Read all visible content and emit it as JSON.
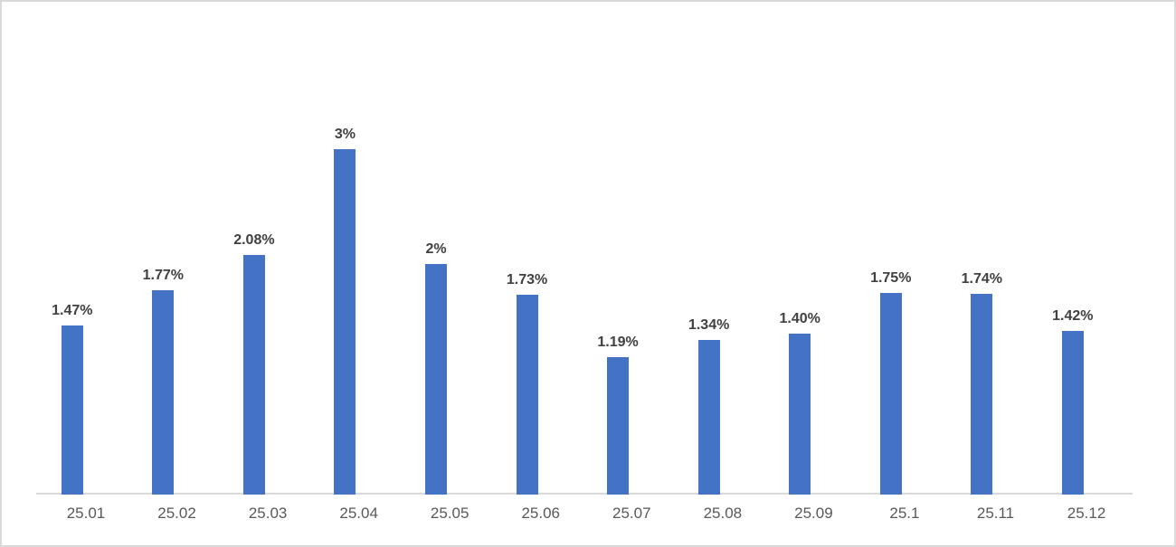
{
  "window": {
    "background": "#FFFFFF",
    "frame_border_color": "#D9D9D9"
  },
  "chart_data": {
    "type": "bar",
    "title": "",
    "xlabel": "",
    "ylabel": "",
    "categories": [
      "25.01",
      "25.02",
      "25.03",
      "25.04",
      "25.05",
      "25.06",
      "25.07",
      "25.08",
      "25.09",
      "25.1",
      "25.11",
      "25.12"
    ],
    "values": [
      1.47,
      1.77,
      2.08,
      3,
      2,
      1.73,
      1.19,
      1.34,
      1.4,
      1.75,
      1.74,
      1.42
    ],
    "data_labels": [
      "1.47%",
      "1.77%",
      "2.08%",
      "3%",
      "2%",
      "1.73%",
      "1.19%",
      "1.34%",
      "1.40%",
      "1.75%",
      "1.74%",
      "1.42%"
    ],
    "ylim": [
      0,
      3.2
    ],
    "grid": false,
    "legend": false,
    "data_labels_shown": true,
    "bar_color": "#4472C4",
    "data_label_color": "#404040",
    "axis_tick_label_color": "#595959",
    "axis_line_color": "#D9D9D9"
  }
}
